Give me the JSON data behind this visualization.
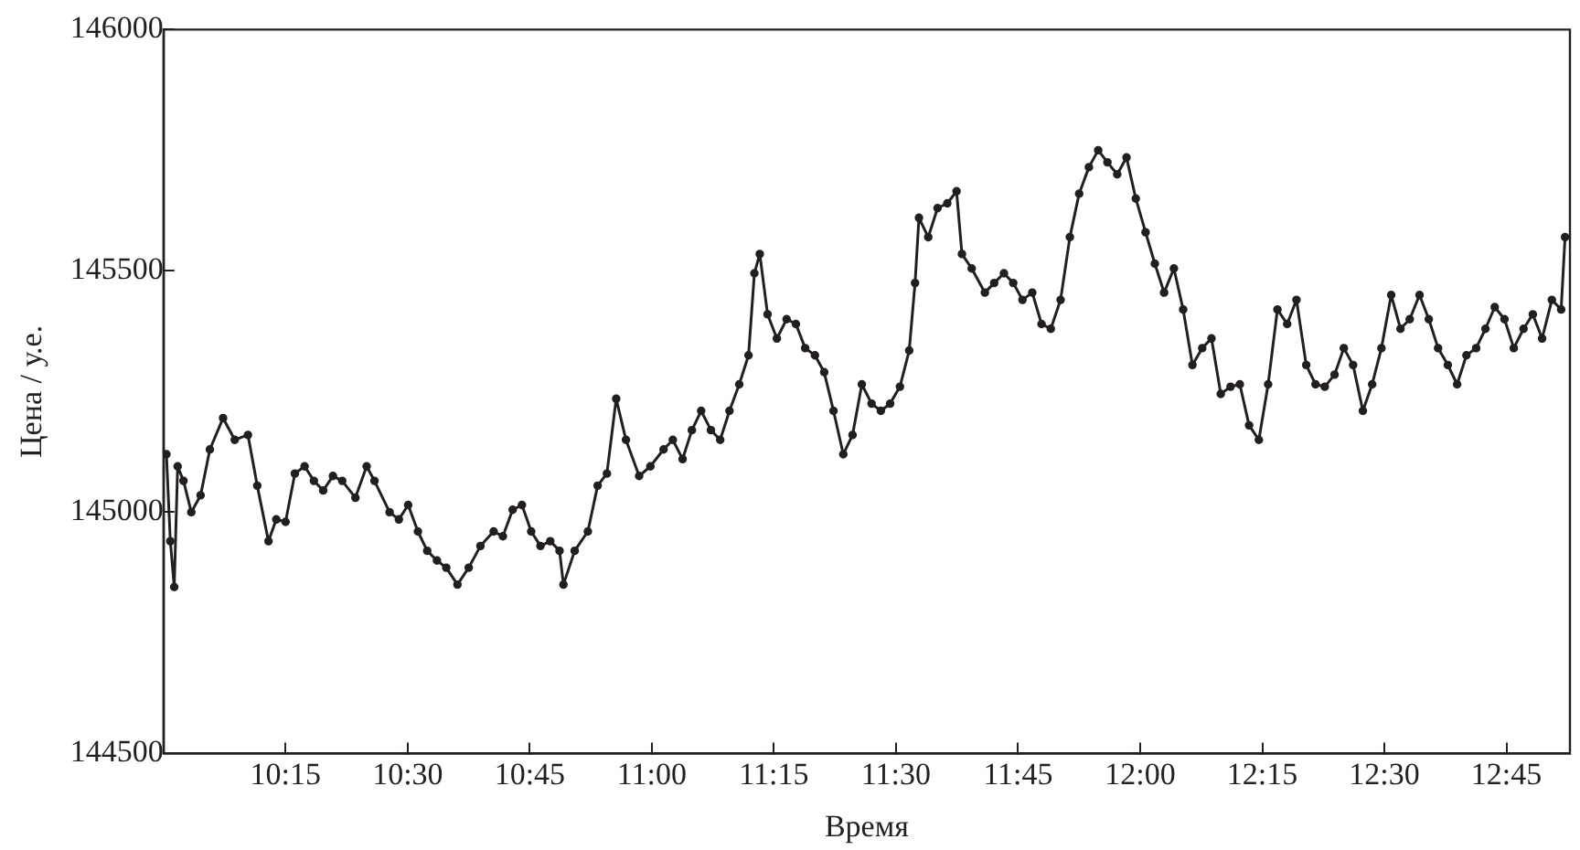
{
  "chart_data": {
    "type": "line",
    "xlabel": "Время",
    "ylabel": "Цена / у.е.",
    "color": "#231f20",
    "marker": "circle",
    "line_style": "solid",
    "grid": false,
    "legend": false,
    "xlim": [
      10,
      12.88
    ],
    "xticks": [
      {
        "value": 10.25,
        "label": "10:15"
      },
      {
        "value": 10.5,
        "label": "10:30"
      },
      {
        "value": 10.75,
        "label": "10:45"
      },
      {
        "value": 11,
        "label": "11:00"
      },
      {
        "value": 11.25,
        "label": "11:15"
      },
      {
        "value": 11.5,
        "label": "11:30"
      },
      {
        "value": 11.75,
        "label": "11:45"
      },
      {
        "value": 12,
        "label": "12:00"
      },
      {
        "value": 12.25,
        "label": "12:15"
      },
      {
        "value": 12.5,
        "label": "12:30"
      },
      {
        "value": 12.75,
        "label": "12:45"
      }
    ],
    "ylim": [
      144500,
      146000
    ],
    "yticks": [
      144500,
      145000,
      145500,
      146000
    ],
    "x": [
      10.006,
      10.014,
      10.022,
      10.029,
      10.041,
      10.057,
      10.076,
      10.095,
      10.122,
      10.146,
      10.173,
      10.192,
      10.215,
      10.231,
      10.25,
      10.269,
      10.289,
      10.308,
      10.327,
      10.347,
      10.366,
      10.393,
      10.416,
      10.432,
      10.463,
      10.482,
      10.501,
      10.521,
      10.54,
      10.56,
      10.579,
      10.602,
      10.625,
      10.649,
      10.676,
      10.695,
      10.715,
      10.734,
      10.753,
      10.772,
      10.792,
      10.811,
      10.819,
      10.842,
      10.869,
      10.889,
      10.908,
      10.927,
      10.947,
      10.974,
      10.997,
      11.024,
      11.043,
      11.063,
      11.082,
      11.101,
      11.121,
      11.14,
      11.159,
      11.179,
      11.198,
      11.21,
      11.221,
      11.237,
      11.256,
      11.276,
      11.295,
      11.314,
      11.334,
      11.353,
      11.372,
      11.392,
      11.411,
      11.43,
      11.45,
      11.469,
      11.488,
      11.508,
      11.527,
      11.539,
      11.547,
      11.566,
      11.585,
      11.605,
      11.624,
      11.635,
      11.655,
      11.682,
      11.701,
      11.721,
      11.74,
      11.759,
      11.779,
      11.798,
      11.817,
      11.837,
      11.856,
      11.875,
      11.895,
      11.914,
      11.933,
      11.953,
      11.972,
      11.991,
      12.011,
      12.03,
      12.049,
      12.069,
      12.088,
      12.107,
      12.127,
      12.146,
      12.165,
      12.185,
      12.204,
      12.223,
      12.243,
      12.262,
      12.281,
      12.301,
      12.32,
      12.34,
      12.359,
      12.378,
      12.398,
      12.417,
      12.436,
      12.456,
      12.475,
      12.494,
      12.514,
      12.533,
      12.552,
      12.572,
      12.591,
      12.61,
      12.63,
      12.649,
      12.668,
      12.688,
      12.707,
      12.726,
      12.746,
      12.765,
      12.785,
      12.804,
      12.823,
      12.843,
      12.862,
      12.87
    ],
    "values": [
      145120,
      144940,
      144845,
      145095,
      145065,
      145000,
      145035,
      145130,
      145195,
      145150,
      145160,
      145055,
      144940,
      144985,
      144980,
      145080,
      145095,
      145065,
      145045,
      145075,
      145065,
      145030,
      145095,
      145065,
      145000,
      144985,
      145015,
      144960,
      144920,
      144900,
      144885,
      144850,
      144885,
      144930,
      144960,
      144950,
      145005,
      145015,
      144960,
      144930,
      144940,
      144920,
      144850,
      144920,
      144960,
      145055,
      145080,
      145235,
      145150,
      145075,
      145095,
      145130,
      145150,
      145110,
      145170,
      145210,
      145170,
      145150,
      145210,
      145265,
      145325,
      145495,
      145535,
      145410,
      145360,
      145400,
      145390,
      145340,
      145325,
      145290,
      145210,
      145120,
      145160,
      145265,
      145225,
      145210,
      145225,
      145260,
      145335,
      145475,
      145610,
      145570,
      145630,
      145640,
      145665,
      145535,
      145505,
      145455,
      145475,
      145495,
      145475,
      145440,
      145455,
      145390,
      145380,
      145440,
      145570,
      145660,
      145715,
      145750,
      145725,
      145700,
      145735,
      145650,
      145580,
      145515,
      145455,
      145505,
      145420,
      145305,
      145340,
      145360,
      145245,
      145260,
      145265,
      145180,
      145150,
      145265,
      145420,
      145390,
      145440,
      145305,
      145265,
      145260,
      145285,
      145340,
      145305,
      145210,
      145265,
      145340,
      145450,
      145380,
      145400,
      145450,
      145400,
      145340,
      145305,
      145265,
      145325,
      145340,
      145380,
      145425,
      145400,
      145340,
      145380,
      145410,
      145360,
      145440,
      145420,
      145570
    ]
  }
}
